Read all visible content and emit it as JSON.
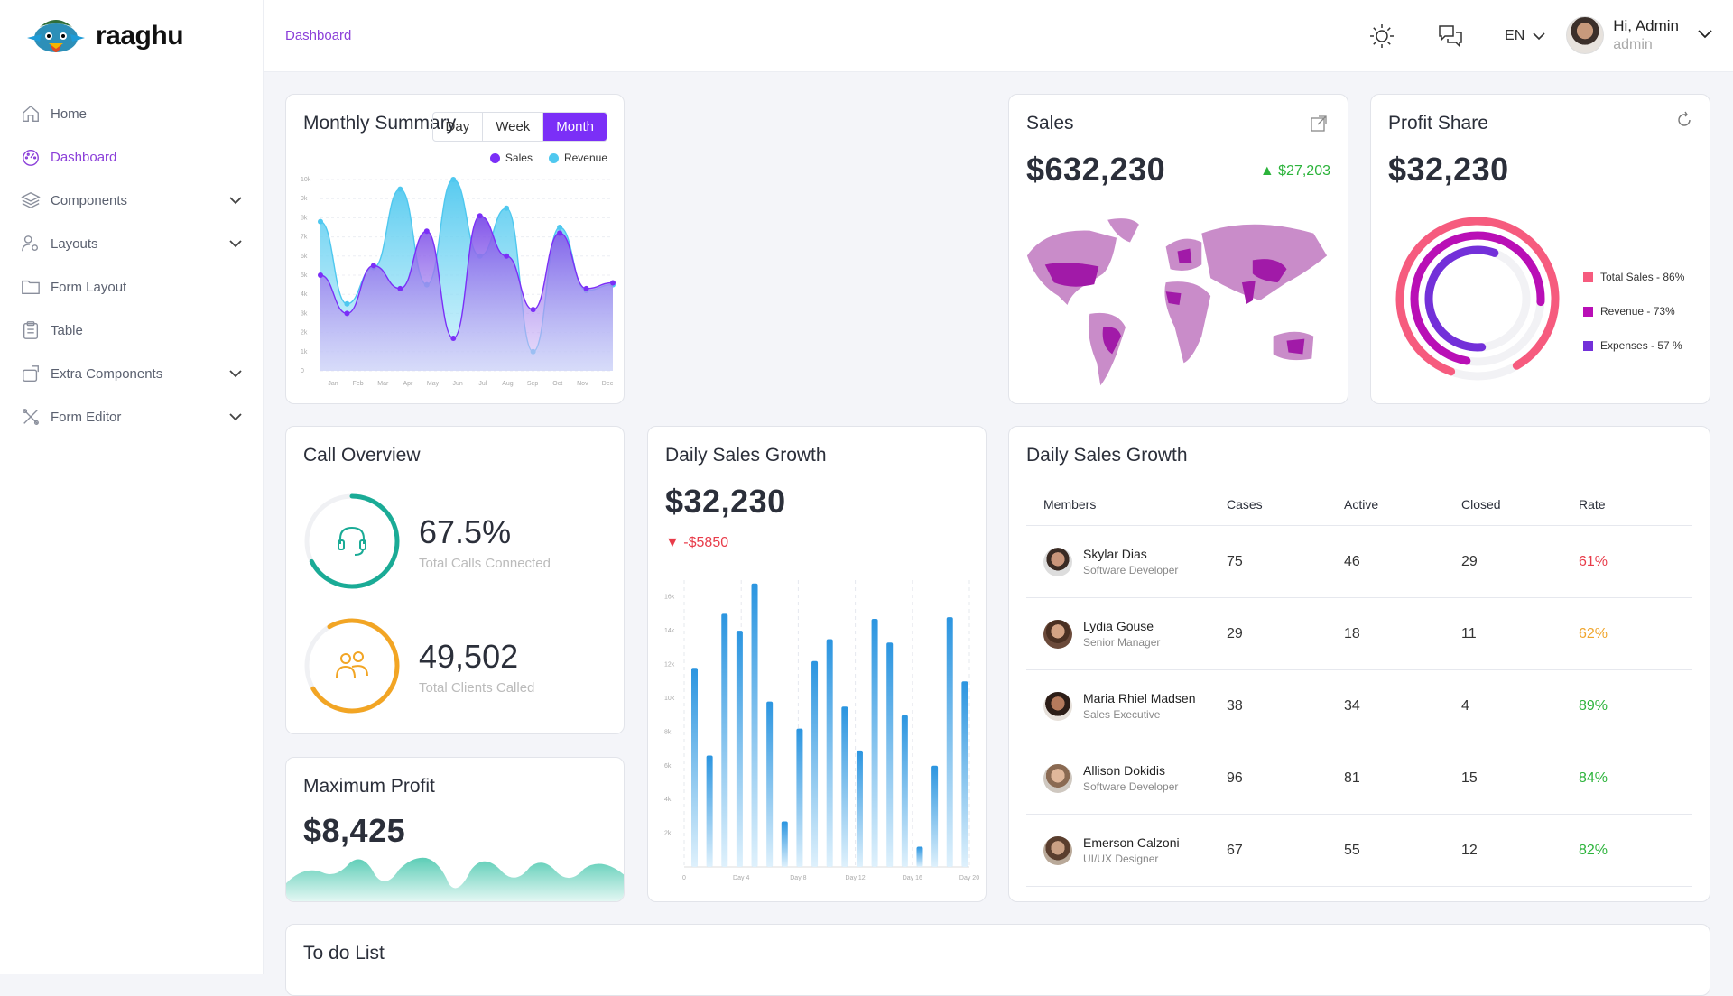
{
  "brand": {
    "name": "raaghu"
  },
  "sidebar": {
    "items": [
      {
        "label": "Home",
        "icon": "home-icon",
        "active": false,
        "expandable": false
      },
      {
        "label": "Dashboard",
        "icon": "dashboard-icon",
        "active": true,
        "expandable": false
      },
      {
        "label": "Components",
        "icon": "layers-icon",
        "active": false,
        "expandable": true
      },
      {
        "label": "Layouts",
        "icon": "user-gear-icon",
        "active": false,
        "expandable": true
      },
      {
        "label": "Form Layout",
        "icon": "folder-icon",
        "active": false,
        "expandable": false
      },
      {
        "label": "Table",
        "icon": "clipboard-icon",
        "active": false,
        "expandable": false
      },
      {
        "label": "Extra Components",
        "icon": "box-icon",
        "active": false,
        "expandable": true
      },
      {
        "label": "Form Editor",
        "icon": "tools-icon",
        "active": false,
        "expandable": true
      }
    ]
  },
  "header": {
    "breadcrumb": "Dashboard",
    "language": "EN",
    "user_greeting": "Hi, Admin",
    "user_role": "admin"
  },
  "monthly_summary": {
    "title": "Monthly Summary",
    "periods": [
      "Day",
      "Week",
      "Month"
    ],
    "selected_period": "Month",
    "legend_sales": "Sales",
    "legend_revenue": "Revenue"
  },
  "sales": {
    "title": "Sales",
    "value": "$632,230",
    "change": "$27,203"
  },
  "profit_share": {
    "title": "Profit Share",
    "value": "$32,230",
    "legend": [
      "Total Sales - 86%",
      "Revenue - 73%",
      "Expenses - 57 %"
    ]
  },
  "call_overview": {
    "title": "Call Overview",
    "stat1_value": "67.5%",
    "stat1_label": "Total Calls Connected",
    "stat2_value": "49,502",
    "stat2_label": "Total Clients Called"
  },
  "daily_sales": {
    "title": "Daily Sales Growth",
    "value": "$32,230",
    "change": "-$5850"
  },
  "max_profit": {
    "title": "Maximum Profit",
    "value": "$8,425"
  },
  "growth_table": {
    "title": "Daily Sales Growth",
    "columns": [
      "Members",
      "Cases",
      "Active",
      "Closed",
      "Rate"
    ],
    "rows": [
      {
        "name": "Skylar Dias",
        "role": "Software Developer",
        "cases": "75",
        "active": "46",
        "closed": "29",
        "rate": "61%"
      },
      {
        "name": "Lydia Gouse",
        "role": "Senior Manager",
        "cases": "29",
        "active": "18",
        "closed": "11",
        "rate": "62%"
      },
      {
        "name": "Maria Rhiel Madsen",
        "role": "Sales Executive",
        "cases": "38",
        "active": "34",
        "closed": "4",
        "rate": "89%"
      },
      {
        "name": "Allison Dokidis",
        "role": "Software Developer",
        "cases": "96",
        "active": "81",
        "closed": "15",
        "rate": "84%"
      },
      {
        "name": "Emerson Calzoni",
        "role": "UI/UX Designer",
        "cases": "67",
        "active": "55",
        "closed": "12",
        "rate": "82%"
      }
    ]
  },
  "todo": {
    "title": "To do List"
  },
  "colors": {
    "accent": "#7b2ff7",
    "sales": "#7b2ff7",
    "revenue": "#4fc8ef",
    "rate_low": "#e83c4a",
    "rate_mid": "#f0a52c",
    "rate_high": "#2bb33a",
    "teal": "#1aab96",
    "orange": "#f2a524"
  },
  "chart_data": [
    {
      "type": "area",
      "title": "Monthly Summary",
      "categories": [
        "Jan",
        "Feb",
        "Mar",
        "Apr",
        "May",
        "Jun",
        "Jul",
        "Aug",
        "Sep",
        "Oct",
        "Nov",
        "Dec"
      ],
      "y_ticks": [
        "0",
        "1k",
        "2k",
        "3k",
        "4k",
        "5k",
        "6k",
        "7k",
        "8k",
        "9k",
        "10k"
      ],
      "ylim": [
        0,
        10000
      ],
      "series": [
        {
          "name": "Revenue",
          "values": [
            7800,
            3500,
            5400,
            9500,
            4500,
            10000,
            6000,
            8500,
            1000,
            7500,
            4200,
            4500
          ]
        },
        {
          "name": "Sales",
          "values": [
            5000,
            3000,
            5500,
            4300,
            7300,
            1700,
            8100,
            6000,
            3200,
            7200,
            4300,
            4600
          ]
        }
      ]
    },
    {
      "type": "bar",
      "title": "Daily Sales Growth",
      "x_ticks": [
        "0",
        "Day 4",
        "Day 8",
        "Day 12",
        "Day 16",
        "Day 20"
      ],
      "y_ticks": [
        "2k",
        "4k",
        "6k",
        "8k",
        "10k",
        "12k",
        "14k",
        "16k"
      ],
      "ylim": [
        0,
        17000
      ],
      "values": [
        11800,
        6600,
        15000,
        14000,
        16800,
        9800,
        2700,
        8200,
        12200,
        13500,
        9500,
        6900,
        14700,
        13300,
        9000,
        1200,
        6000,
        14800,
        11000
      ]
    }
  ]
}
